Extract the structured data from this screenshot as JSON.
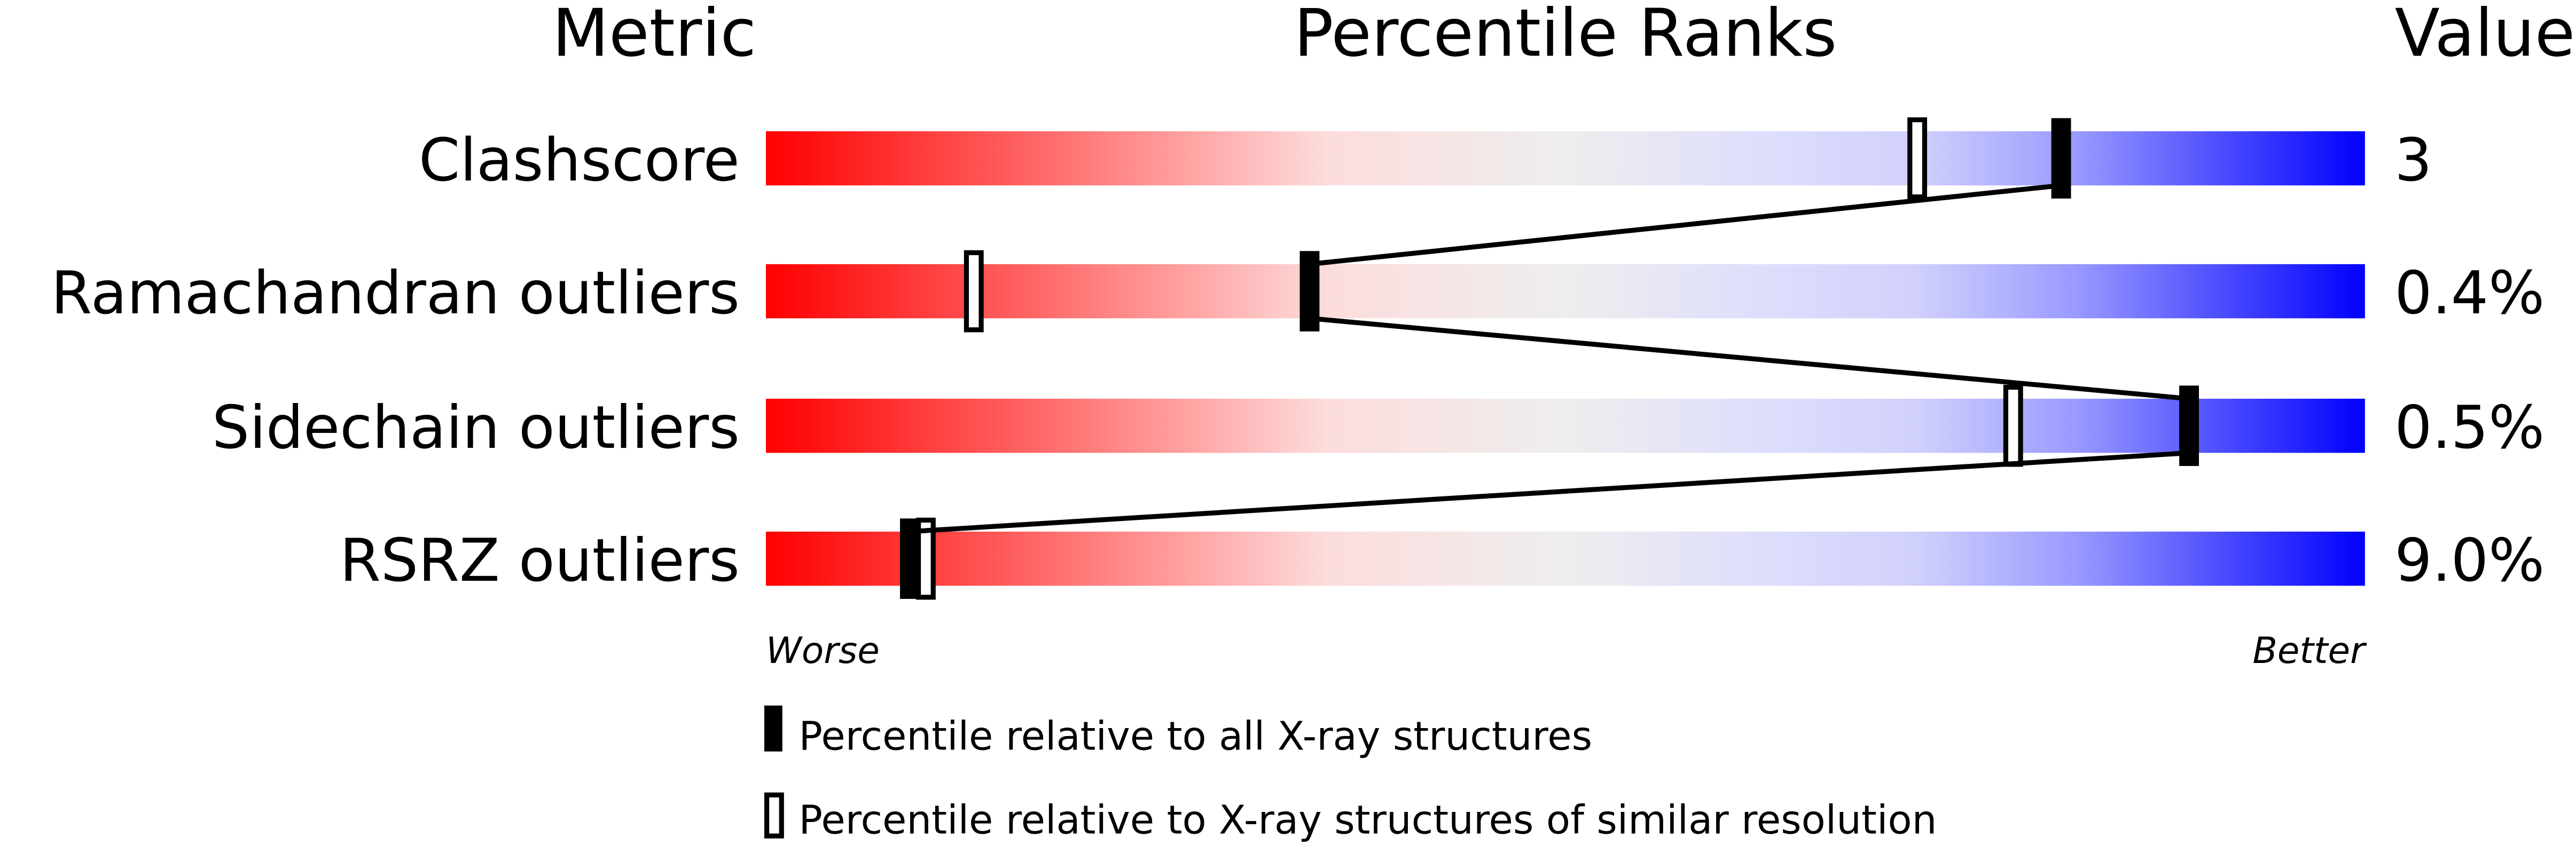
{
  "chart_data": {
    "type": "percentile-rank-bars",
    "headers": {
      "metric": "Metric",
      "ranks": "Percentile Ranks",
      "value": "Value"
    },
    "axis": {
      "range": [
        0,
        100
      ],
      "left_label": "Worse",
      "right_label": "Better"
    },
    "gradient_colors": [
      "#ff0000",
      "#eeeeee",
      "#0000ff"
    ],
    "rows": [
      {
        "metric": "Clashscore",
        "value": "3",
        "percentile_all": 81,
        "percentile_similar": 72
      },
      {
        "metric": "Ramachandran outliers",
        "value": "0.4%",
        "percentile_all": 34,
        "percentile_similar": 13
      },
      {
        "metric": "Sidechain outliers",
        "value": "0.5%",
        "percentile_all": 89,
        "percentile_similar": 78
      },
      {
        "metric": "RSRZ outliers",
        "value": "9.0%",
        "percentile_all": 9,
        "percentile_similar": 10
      }
    ],
    "legend": [
      {
        "marker": "filled",
        "label": "Percentile relative to all X-ray structures"
      },
      {
        "marker": "open",
        "label": "Percentile relative to X-ray structures of similar resolution"
      }
    ]
  }
}
